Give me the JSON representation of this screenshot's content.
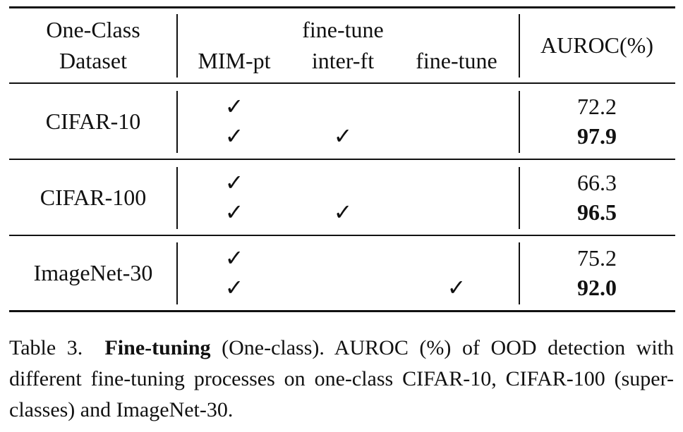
{
  "table": {
    "header": {
      "dataset": [
        "One-Class",
        "Dataset"
      ],
      "group": "fine-tune",
      "columns": [
        "MIM-pt",
        "inter-ft",
        "fine-tune"
      ],
      "metric": "AUROC(%)"
    },
    "groups": [
      {
        "dataset": "CIFAR-10",
        "rows": [
          {
            "marks": [
              "✓",
              null,
              null
            ],
            "auroc": "72.2",
            "bold": false
          },
          {
            "marks": [
              "✓",
              "✓",
              null
            ],
            "auroc": "97.9",
            "bold": true
          }
        ]
      },
      {
        "dataset": "CIFAR-100",
        "rows": [
          {
            "marks": [
              "✓",
              null,
              null
            ],
            "auroc": "66.3",
            "bold": false
          },
          {
            "marks": [
              "✓",
              "✓",
              null
            ],
            "auroc": "96.5",
            "bold": true
          }
        ]
      },
      {
        "dataset": "ImageNet-30",
        "rows": [
          {
            "marks": [
              "✓",
              null,
              null
            ],
            "auroc": "75.2",
            "bold": false
          },
          {
            "marks": [
              "✓",
              null,
              "✓"
            ],
            "auroc": "92.0",
            "bold": true
          }
        ]
      }
    ]
  },
  "caption": {
    "label": "Table 3.",
    "bold": "Fine-tuning",
    "text": "(One-class). AUROC (%) of OOD detection with different fine-tuning processes on one-class CIFAR-10, CIFAR-100 (super-classes) and ImageNet-30."
  }
}
